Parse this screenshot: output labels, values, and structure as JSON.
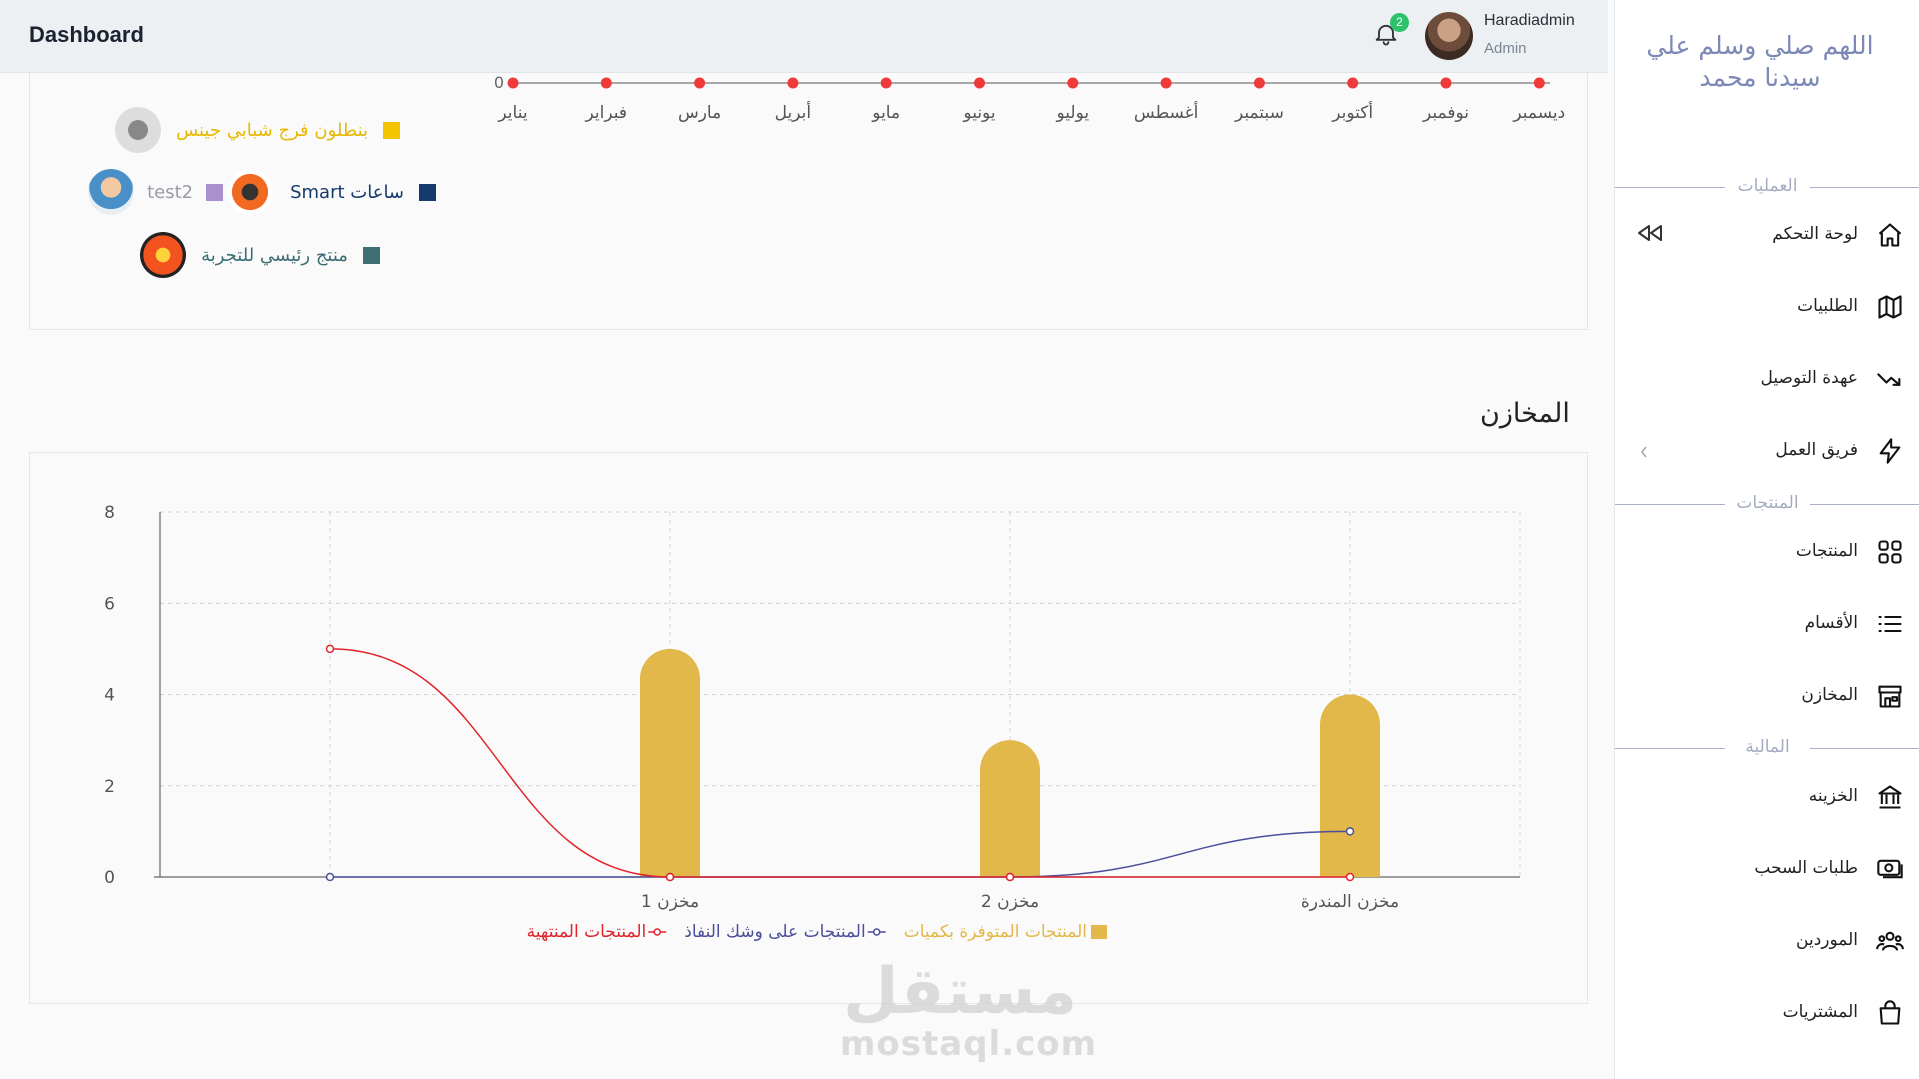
{
  "header": {
    "title": "Dashboard",
    "notifications_count": "2",
    "user_name": "Haradiadmin",
    "user_role": "Admin"
  },
  "sidebar": {
    "title": "اللهم صلي وسلم علي سيدنا محمد",
    "sections": {
      "operations": "العمليات",
      "products": "المنتجات",
      "finance": "المالية"
    },
    "items": [
      {
        "label": "لوحة التحكم",
        "icon": "home-icon"
      },
      {
        "label": "الطلبيات",
        "icon": "map-icon"
      },
      {
        "label": "عهدة التوصيل",
        "icon": "trend-icon"
      },
      {
        "label": "فريق العمل",
        "icon": "lightning-icon"
      },
      {
        "label": "المنتجات",
        "icon": "grid-icon"
      },
      {
        "label": "الأقسام",
        "icon": "list-icon"
      },
      {
        "label": "المخازن",
        "icon": "store-icon"
      },
      {
        "label": "الخزينه",
        "icon": "bank-icon"
      },
      {
        "label": "طلبات السحب",
        "icon": "money-icon"
      },
      {
        "label": "الموردين",
        "icon": "users-icon"
      },
      {
        "label": "المشتريات",
        "icon": "bag-icon"
      }
    ]
  },
  "monthly_chart": {
    "y_tick": "0",
    "months": [
      "يناير",
      "فبراير",
      "مارس",
      "أبريل",
      "مايو",
      "يونيو",
      "يوليو",
      "أغسطس",
      "سبتمبر",
      "أكتوبر",
      "نوفمبر",
      "ديسمبر"
    ],
    "legend": [
      {
        "label": "بنطلون فرج شبابي جينس",
        "color": "#f5c400"
      },
      {
        "label": "ساعات Smart",
        "color": "#163a6e"
      },
      {
        "label": "test2",
        "color": "#a990cf"
      },
      {
        "label": "منتج رئيسي للتجربة",
        "color": "#3c6f73"
      }
    ]
  },
  "warehouses": {
    "title": "المخازن",
    "chart_data": {
      "type": "bar",
      "categories": [
        "",
        "مخزن 1",
        "مخزن 2",
        "مخزن المندرة"
      ],
      "ylim": [
        0,
        8
      ],
      "yticks": [
        "0",
        "2",
        "4",
        "6",
        "8"
      ],
      "series": [
        {
          "name": "المنتجات المتوفرة بكميات",
          "type": "bar",
          "color": "#e2b84a",
          "values": [
            0,
            5,
            3,
            4
          ]
        },
        {
          "name": "المنتجات على وشك النفاذ",
          "type": "line",
          "color": "#4a4f9a",
          "values": [
            0,
            0,
            0,
            1
          ]
        },
        {
          "name": "المنتجات المنتهية",
          "type": "line",
          "color": "#e0242d",
          "values": [
            5,
            0,
            0,
            0
          ]
        }
      ]
    }
  },
  "watermark": {
    "line1": "مستقل",
    "line2": "mostaql.com"
  }
}
